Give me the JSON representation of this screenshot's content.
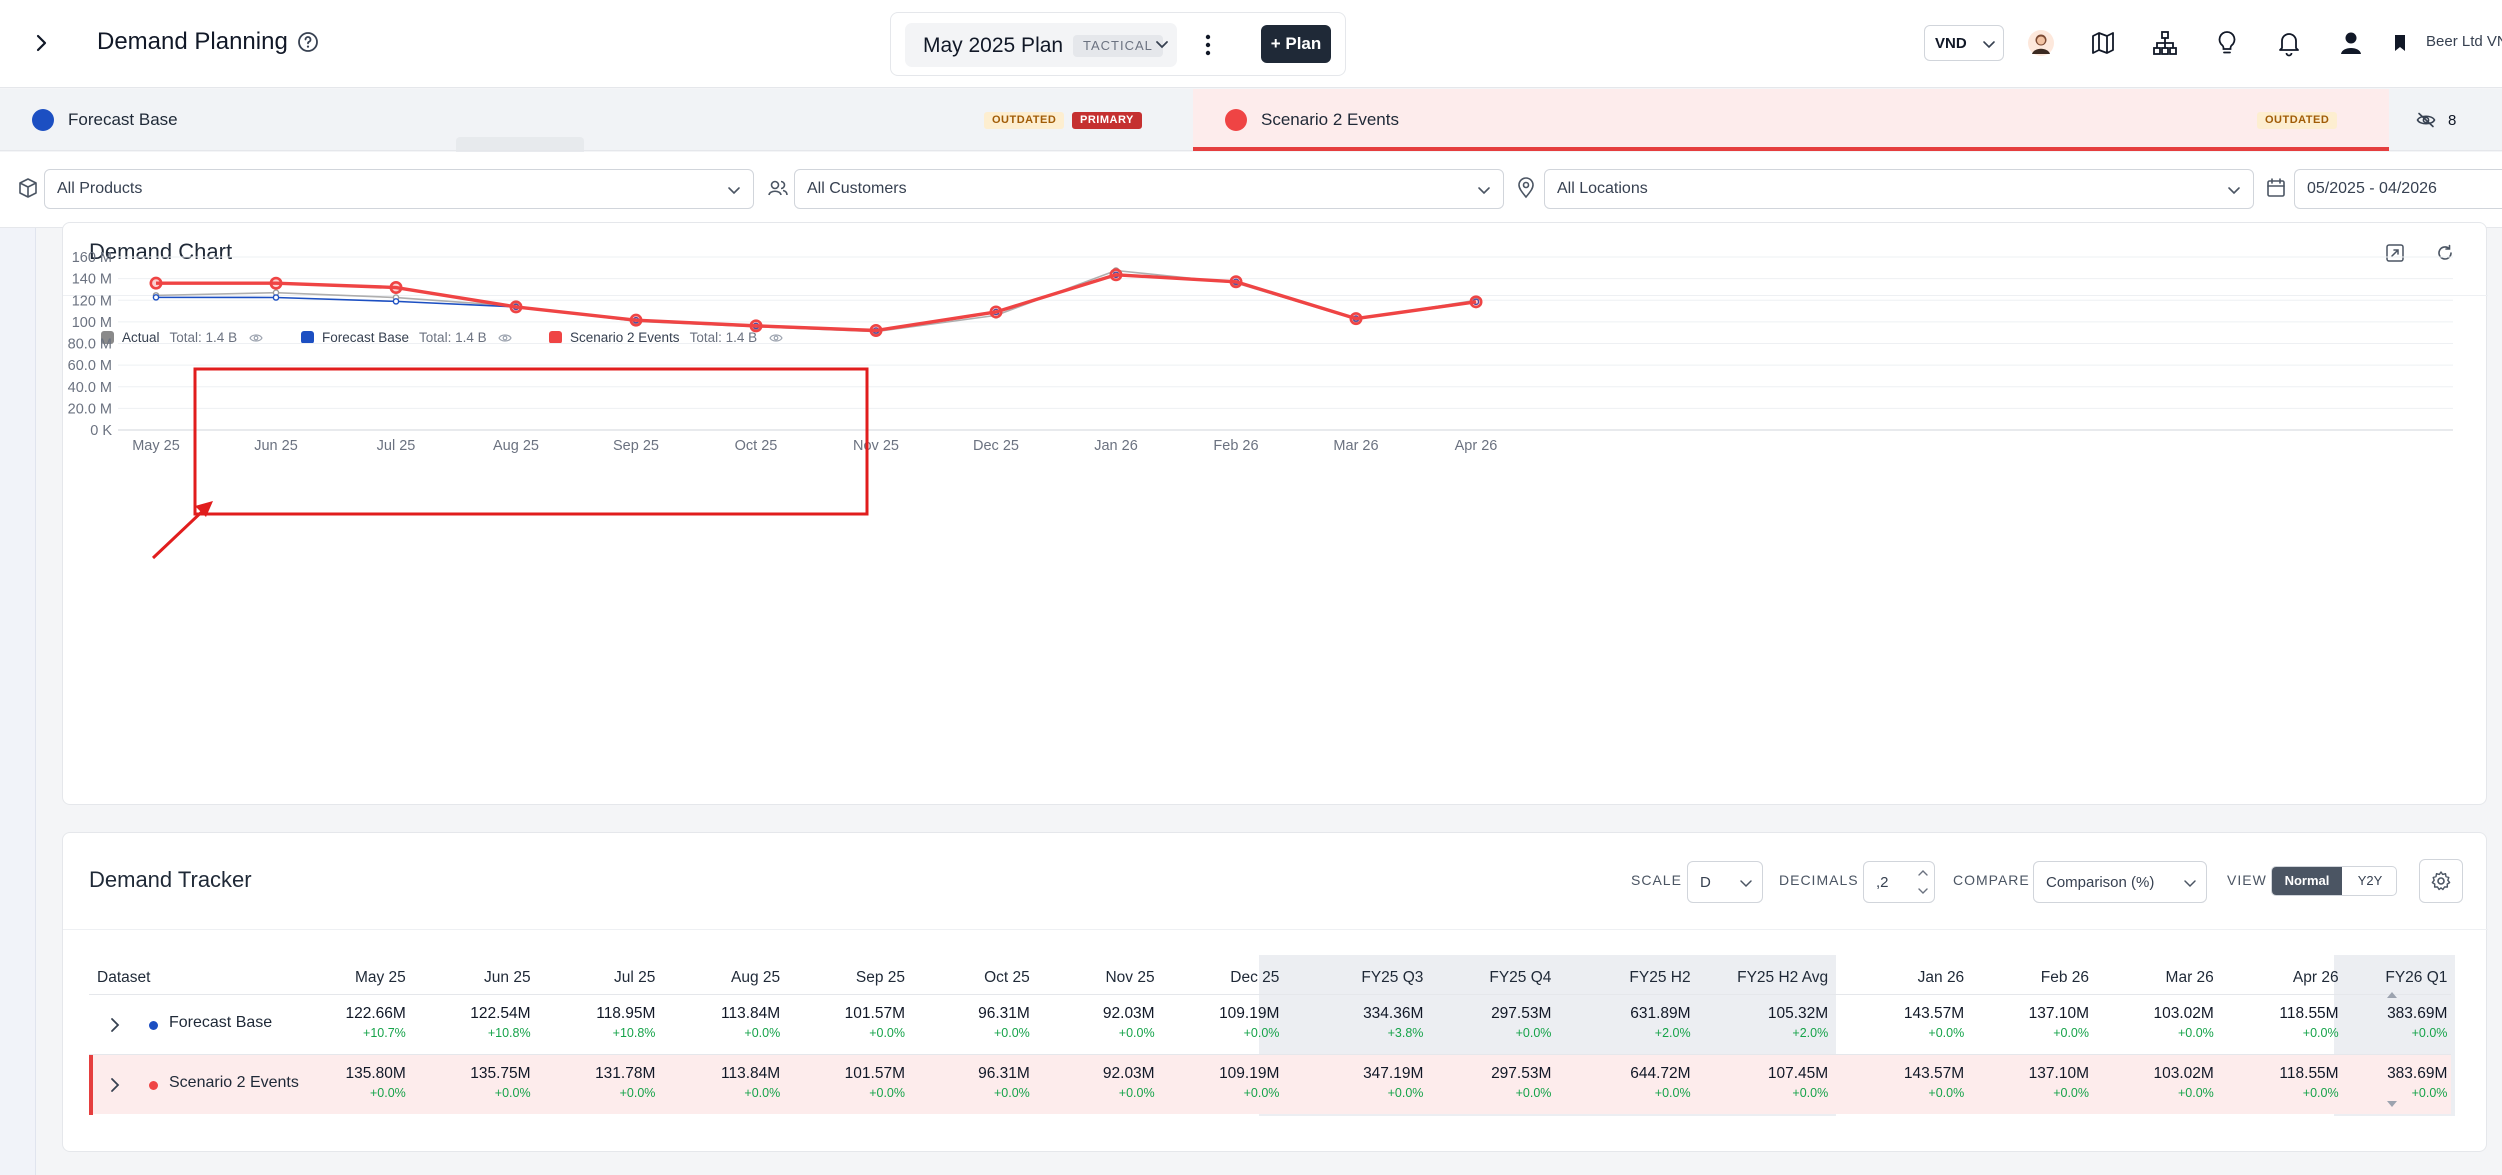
{
  "header": {
    "title": "Demand Planning",
    "plan_name": "May 2025 Plan",
    "plan_badge": "TACTICAL",
    "add_plan_label": "+ Plan",
    "currency": "VND",
    "org_name": "Beer Ltd VN"
  },
  "tabs": [
    {
      "label": "Forecast Base",
      "color": "#1c4fc2",
      "badges": [
        "OUTDATED",
        "PRIMARY"
      ]
    },
    {
      "label": "Scenario 2 Events",
      "color": "#ef4444",
      "badges": [
        "OUTDATED"
      ]
    }
  ],
  "hidden_count": "8",
  "filters": {
    "products": "All Products",
    "customers": "All Customers",
    "locations": "All Locations",
    "date_range": "05/2025 - 04/2026"
  },
  "chart": {
    "title": "Demand Chart",
    "legend": [
      {
        "name": "Actual",
        "total": "Total: 1.4 B",
        "color": "#8a8a8a"
      },
      {
        "name": "Forecast Base",
        "total": "Total: 1.4 B",
        "color": "#1c4fc2"
      },
      {
        "name": "Scenario 2 Events",
        "total": "Total: 1.4 B",
        "color": "#ef4444"
      }
    ]
  },
  "chart_data": {
    "type": "line",
    "categories": [
      "May 25",
      "Jun 25",
      "Jul 25",
      "Aug 25",
      "Sep 25",
      "Oct 25",
      "Nov 25",
      "Dec 25",
      "Jan 26",
      "Feb 26",
      "Mar 26",
      "Apr 26"
    ],
    "y_tick_labels": [
      "0 K",
      "20.0 M",
      "40.0 M",
      "60.0 M",
      "80.0 M",
      "100 M",
      "120 M",
      "140 M",
      "160 M"
    ],
    "ylim": [
      0,
      160
    ],
    "y_unit": "M",
    "grid": true,
    "legend_position": "top-left",
    "series": [
      {
        "name": "Actual",
        "color": "#9b9b9b",
        "values": [
          124.5,
          127.0,
          122.5,
          114.5,
          100.5,
          95.5,
          91.0,
          106.0,
          147.5,
          136.0,
          102.5,
          120.0
        ]
      },
      {
        "name": "Forecast Base",
        "color": "#1c4fc2",
        "values": [
          122.66,
          122.54,
          118.95,
          113.84,
          101.57,
          96.31,
          92.03,
          109.19,
          143.57,
          137.1,
          103.02,
          118.55
        ]
      },
      {
        "name": "Scenario 2 Events",
        "color": "#ef4444",
        "values": [
          135.8,
          135.75,
          131.78,
          113.84,
          101.57,
          96.31,
          92.03,
          109.19,
          143.57,
          137.1,
          103.02,
          118.55
        ]
      }
    ]
  },
  "tracker": {
    "title": "Demand Tracker",
    "scale_label": "SCALE",
    "scale_value": "D",
    "decimals_label": "DECIMALS",
    "decimals_value": ",2",
    "compare_label": "COMPARE",
    "compare_value": "Comparison (%)",
    "view_label": "VIEW",
    "view_normal": "Normal",
    "view_y2y": "Y2Y",
    "dataset_header": "Dataset",
    "columns": [
      "May 25",
      "Jun 25",
      "Jul 25",
      "Aug 25",
      "Sep 25",
      "Oct 25",
      "Nov 25",
      "Dec 25",
      "FY25 Q3",
      "FY25 Q4",
      "FY25 H2",
      "FY25 H2 Avg",
      "Jan 26",
      "Feb 26",
      "Mar 26",
      "Apr 26",
      "FY26 Q1"
    ],
    "rows": [
      {
        "name": "Forecast Base",
        "color": "#1c4fc2",
        "values": [
          "122.66M",
          "122.54M",
          "118.95M",
          "113.84M",
          "101.57M",
          "96.31M",
          "92.03M",
          "109.19M",
          "334.36M",
          "297.53M",
          "631.89M",
          "105.32M",
          "143.57M",
          "137.10M",
          "103.02M",
          "118.55M",
          "383.69M"
        ],
        "deltas": [
          "+10.7%",
          "+10.8%",
          "+10.8%",
          "+0.0%",
          "+0.0%",
          "+0.0%",
          "+0.0%",
          "+0.0%",
          "+3.8%",
          "+0.0%",
          "+2.0%",
          "+2.0%",
          "+0.0%",
          "+0.0%",
          "+0.0%",
          "+0.0%",
          "+0.0%"
        ]
      },
      {
        "name": "Scenario 2 Events",
        "color": "#ef4444",
        "values": [
          "135.80M",
          "135.75M",
          "131.78M",
          "113.84M",
          "101.57M",
          "96.31M",
          "92.03M",
          "109.19M",
          "347.19M",
          "297.53M",
          "644.72M",
          "107.45M",
          "143.57M",
          "137.10M",
          "103.02M",
          "118.55M",
          "383.69M"
        ],
        "deltas": [
          "+0.0%",
          "+0.0%",
          "+0.0%",
          "+0.0%",
          "+0.0%",
          "+0.0%",
          "+0.0%",
          "+0.0%",
          "+0.0%",
          "+0.0%",
          "+0.0%",
          "+0.0%",
          "+0.0%",
          "+0.0%",
          "+0.0%",
          "+0.0%",
          "+0.0%"
        ]
      }
    ]
  }
}
